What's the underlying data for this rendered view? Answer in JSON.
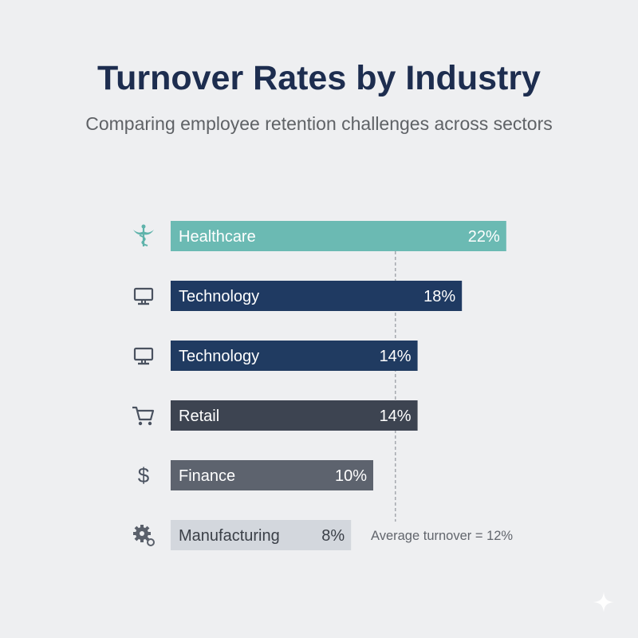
{
  "title": "Turnover Rates by Industry",
  "subtitle": "Comparing employee retention challenges across sectors",
  "chart_data": {
    "type": "bar",
    "orientation": "horizontal",
    "categories": [
      "Healthcare",
      "Technology",
      "Technology",
      "Retail",
      "Finance",
      "Manufacturing"
    ],
    "values": [
      22,
      18,
      14,
      14,
      10,
      8
    ],
    "value_labels": [
      "22%",
      "18%",
      "14%",
      "14%",
      "10%",
      "8%"
    ],
    "icons": [
      "caduceus-icon",
      "monitor-icon",
      "monitor-icon",
      "shopping-cart-icon",
      "dollar-icon",
      "gears-icon"
    ],
    "colors": [
      "#6bbab3",
      "#1f3a62",
      "#203b61",
      "#3d4451",
      "#5d636e",
      "#d3d7dd"
    ],
    "text_colors": [
      "#ffffff",
      "#ffffff",
      "#ffffff",
      "#ffffff",
      "#ffffff",
      "#3a3f47"
    ],
    "reference_line": {
      "value": 12,
      "label": "Average turnover = 12%"
    },
    "unit": "%",
    "grid": false
  }
}
